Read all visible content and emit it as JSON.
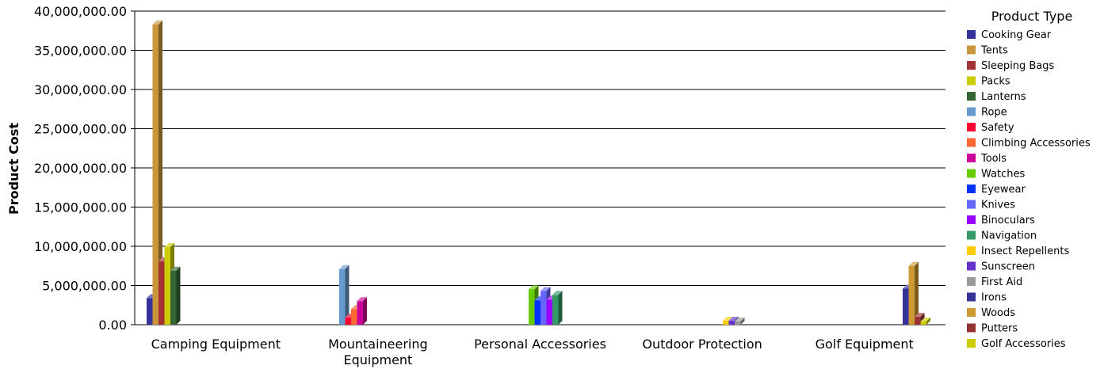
{
  "chart_data": {
    "type": "bar",
    "ylabel": "Product Cost",
    "ylim": [
      0,
      40000000
    ],
    "yticks": [
      "0.00",
      "5,000,000.00",
      "10,000,000.00",
      "15,000,000.00",
      "20,000,000.00",
      "25,000,000.00",
      "30,000,000.00",
      "35,000,000.00",
      "40,000,000.00"
    ],
    "grid": true,
    "legend_title": "Product Type",
    "legend_position": "right",
    "categories": [
      {
        "label": [
          "Camping Equipment"
        ],
        "series": [
          0,
          1,
          2,
          3,
          4
        ]
      },
      {
        "label": [
          "Mountaineering",
          "Equipment"
        ],
        "series": [
          5,
          6,
          7,
          8
        ]
      },
      {
        "label": [
          "Personal Accessories"
        ],
        "series": [
          9,
          10,
          11,
          12,
          13
        ]
      },
      {
        "label": [
          "Outdoor Protection"
        ],
        "series": [
          14,
          15,
          16
        ]
      },
      {
        "label": [
          "Golf Equipment"
        ],
        "series": [
          17,
          18,
          19,
          20
        ]
      }
    ],
    "series": [
      {
        "name": "Cooking Gear",
        "color": "#33339a",
        "value": 3400000
      },
      {
        "name": "Tents",
        "color": "#c9963c",
        "value": 38300000
      },
      {
        "name": "Sleeping Bags",
        "color": "#a33333",
        "value": 8100000
      },
      {
        "name": "Packs",
        "color": "#cccc00",
        "value": 9900000
      },
      {
        "name": "Lanterns",
        "color": "#336633",
        "value": 6900000
      },
      {
        "name": "Rope",
        "color": "#6699cc",
        "value": 7100000
      },
      {
        "name": "Safety",
        "color": "#ff0033",
        "value": 900000
      },
      {
        "name": "Climbing Accessories",
        "color": "#ff6633",
        "value": 2000000
      },
      {
        "name": "Tools",
        "color": "#cc0099",
        "value": 3000000
      },
      {
        "name": "Watches",
        "color": "#66cc00",
        "value": 4500000
      },
      {
        "name": "Eyewear",
        "color": "#0033ff",
        "value": 3100000
      },
      {
        "name": "Knives",
        "color": "#6666ff",
        "value": 4300000
      },
      {
        "name": "Binoculars",
        "color": "#9900ff",
        "value": 3200000
      },
      {
        "name": "Navigation",
        "color": "#339966",
        "value": 3800000
      },
      {
        "name": "Insect Repellents",
        "color": "#ffcc00",
        "value": 500000
      },
      {
        "name": "Sunscreen",
        "color": "#6633cc",
        "value": 500000
      },
      {
        "name": "First Aid",
        "color": "#999999",
        "value": 400000
      },
      {
        "name": "Irons",
        "color": "#333399",
        "value": 4600000
      },
      {
        "name": "Woods",
        "color": "#cc9933",
        "value": 7500000
      },
      {
        "name": "Putters",
        "color": "#993333",
        "value": 1000000
      },
      {
        "name": "Golf Accessories",
        "color": "#cccc00",
        "value": 400000
      }
    ]
  }
}
